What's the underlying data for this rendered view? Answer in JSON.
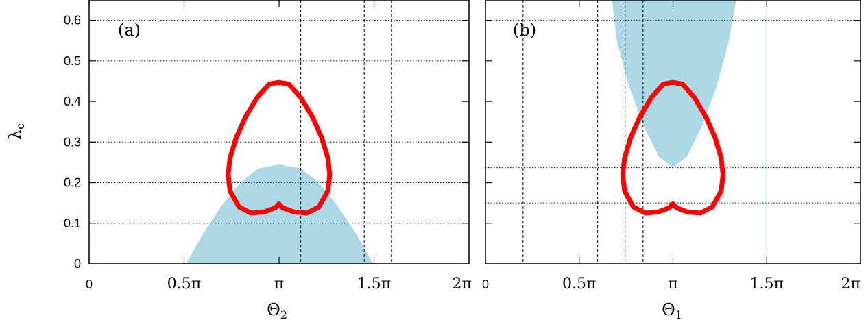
{
  "chart_data": [
    {
      "type": "area",
      "panel_label": "(a)",
      "xlabel": "Θ",
      "xlabel_sub": "2",
      "ylabel": "λ",
      "ylabel_sub": "c",
      "xlim": [
        0,
        6.2832
      ],
      "ylim": [
        0,
        0.65
      ],
      "x_ticks": [
        {
          "value": 0,
          "label": "0",
          "font": "sans"
        },
        {
          "value": 1.5708,
          "label": "0.5π",
          "font": "serif"
        },
        {
          "value": 3.1416,
          "label": "π",
          "font": "serif"
        },
        {
          "value": 4.7124,
          "label": "1.5π",
          "font": "serif"
        }
      ],
      "y_ticks": [
        {
          "value": 0,
          "label": "0"
        },
        {
          "value": 0.1,
          "label": "0.1"
        },
        {
          "value": 0.2,
          "label": "0.2"
        },
        {
          "value": 0.3,
          "label": "0.3"
        },
        {
          "value": 0.4,
          "label": "0.4"
        },
        {
          "value": 0.5,
          "label": "0.5"
        },
        {
          "value": 0.6,
          "label": "0.6"
        }
      ],
      "h_dotted_lines": [
        0.1,
        0.2,
        0.3,
        0.5,
        0.6
      ],
      "v_dashed_lines": [
        3.5,
        4.55,
        5.0
      ],
      "shaded_region": {
        "color": "#add8e6",
        "x": [
          1.6,
          1.9,
          2.2,
          2.5,
          2.8,
          3.14,
          3.5,
          3.8,
          4.1,
          4.4,
          4.7
        ],
        "y": [
          0,
          0.078,
          0.145,
          0.2,
          0.235,
          0.245,
          0.235,
          0.2,
          0.145,
          0.078,
          0
        ]
      },
      "red_curve": {
        "color": "#ff0000",
        "x": [
          3.14,
          3.3,
          3.5,
          3.7,
          3.85,
          3.95,
          3.98,
          3.95,
          3.8,
          3.6,
          3.38,
          3.2,
          3.14,
          3.08,
          2.9,
          2.68,
          2.48,
          2.33,
          2.3,
          2.33,
          2.43,
          2.58,
          2.78,
          2.98,
          3.14
        ],
        "y": [
          0.447,
          0.443,
          0.41,
          0.36,
          0.31,
          0.26,
          0.22,
          0.18,
          0.14,
          0.125,
          0.128,
          0.138,
          0.148,
          0.138,
          0.128,
          0.125,
          0.14,
          0.18,
          0.22,
          0.26,
          0.31,
          0.36,
          0.41,
          0.443,
          0.447
        ]
      }
    },
    {
      "type": "area",
      "panel_label": "(b)",
      "xlabel": "Θ",
      "xlabel_sub": "1",
      "ylabel": "",
      "ylabel_sub": "",
      "xlim": [
        0,
        6.2832
      ],
      "ylim": [
        0,
        0.65
      ],
      "x_ticks": [
        {
          "value": 0,
          "label": "0",
          "font": "sans"
        },
        {
          "value": 1.5708,
          "label": "0.5π",
          "font": "serif"
        },
        {
          "value": 3.1416,
          "label": "π",
          "font": "serif"
        },
        {
          "value": 4.7124,
          "label": "1.5π",
          "font": "serif"
        },
        {
          "value": 6.2832,
          "label": "2π",
          "font": "serif"
        }
      ],
      "y_ticks": [
        {
          "value": 0,
          "label": ""
        },
        {
          "value": 0.1,
          "label": ""
        },
        {
          "value": 0.2,
          "label": ""
        },
        {
          "value": 0.3,
          "label": ""
        },
        {
          "value": 0.4,
          "label": ""
        },
        {
          "value": 0.5,
          "label": ""
        },
        {
          "value": 0.6,
          "label": ""
        }
      ],
      "h_dotted_lines": [
        0.15,
        0.237,
        0.6
      ],
      "v_dashed_lines": [
        0.63,
        1.88,
        2.34,
        2.64
      ],
      "v_solid_line": {
        "value": 4.71,
        "color": "#ddeeff"
      },
      "shaded_region": {
        "color": "#add8e6",
        "x": [
          2.12,
          2.2,
          2.4,
          2.65,
          2.9,
          3.14,
          3.38,
          3.63,
          3.88,
          4.08,
          4.2
        ],
        "y": [
          0.65,
          0.55,
          0.44,
          0.34,
          0.265,
          0.237,
          0.265,
          0.34,
          0.44,
          0.55,
          0.65
        ]
      },
      "red_curve": {
        "color": "#ff0000",
        "x": [
          3.14,
          3.3,
          3.5,
          3.7,
          3.85,
          3.95,
          3.98,
          3.95,
          3.8,
          3.6,
          3.38,
          3.2,
          3.14,
          3.08,
          2.9,
          2.68,
          2.48,
          2.33,
          2.3,
          2.33,
          2.43,
          2.58,
          2.78,
          2.98,
          3.14
        ],
        "y": [
          0.447,
          0.443,
          0.41,
          0.36,
          0.31,
          0.26,
          0.22,
          0.18,
          0.14,
          0.125,
          0.128,
          0.138,
          0.148,
          0.138,
          0.128,
          0.125,
          0.14,
          0.18,
          0.22,
          0.26,
          0.31,
          0.36,
          0.41,
          0.443,
          0.447
        ]
      }
    }
  ],
  "shared_x_tick_label": "2π"
}
